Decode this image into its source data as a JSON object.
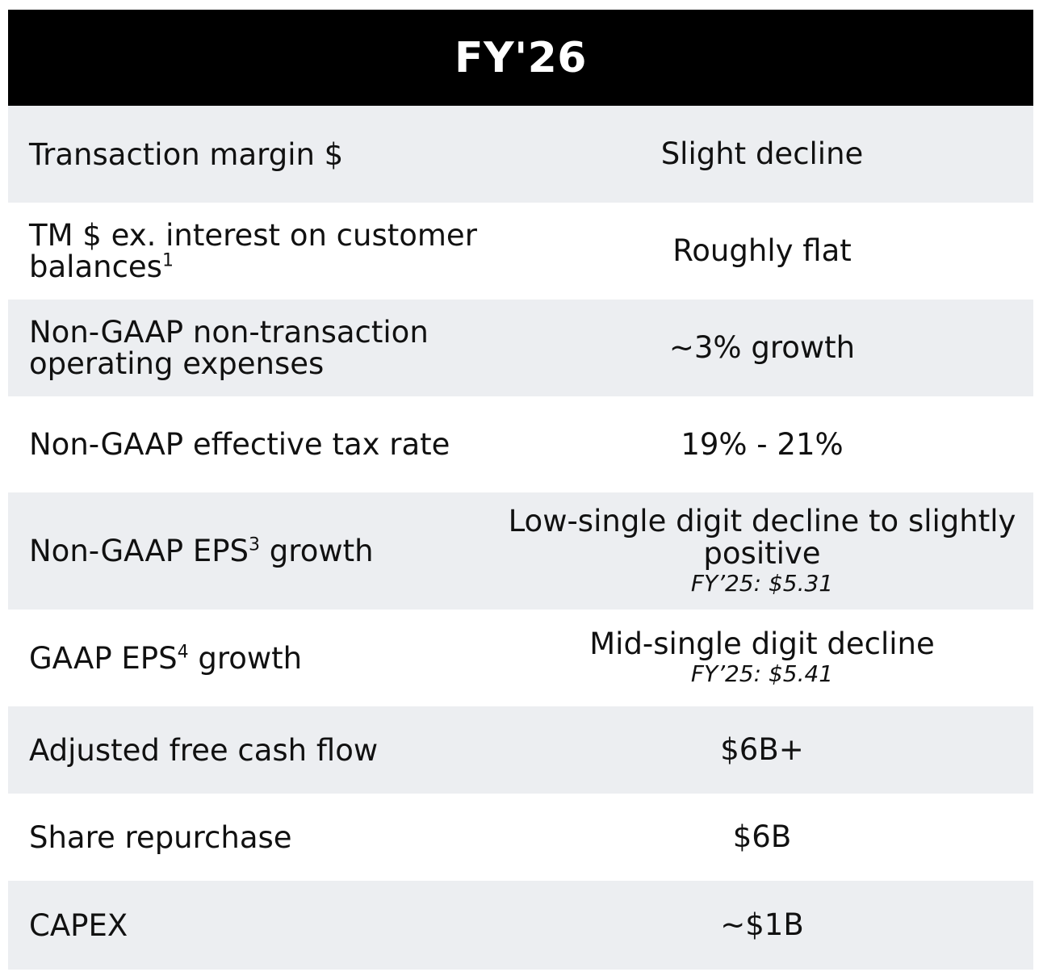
{
  "title": "FY'26",
  "rows": [
    {
      "label": "Transaction margin $",
      "value": "Slight decline"
    },
    {
      "label": "TM $ ex. interest on customer balances",
      "label_sup": "1",
      "value": "Roughly flat"
    },
    {
      "label": "Non-GAAP non-transaction operating expenses",
      "value": "~3% growth"
    },
    {
      "label": "Non-GAAP effective tax rate",
      "value": "19% - 21%"
    },
    {
      "label": "Non-GAAP EPS",
      "label_sup": "3",
      "label_after": " growth",
      "value": "Low-single digit decline to slightly positive",
      "note": "FY’25: $5.31"
    },
    {
      "label": "GAAP EPS",
      "label_sup": "4",
      "label_after": " growth",
      "value": "Mid-single digit decline",
      "note": "FY’25: $5.41"
    },
    {
      "label": "Adjusted free cash flow",
      "value": "$6B+"
    },
    {
      "label": "Share repurchase",
      "value": "$6B"
    },
    {
      "label": "CAPEX",
      "value": "~$1B"
    }
  ]
}
